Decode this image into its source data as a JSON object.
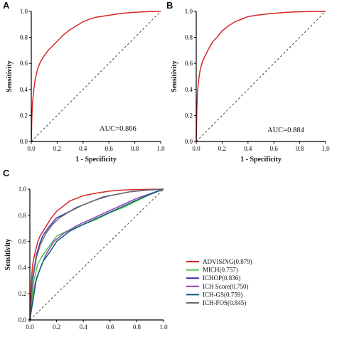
{
  "chart_data": [
    {
      "panel": "A",
      "type": "line",
      "xlabel": "1 - Specificity",
      "ylabel": "Sensitivity",
      "xlim": [
        0,
        1
      ],
      "ylim": [
        0,
        1
      ],
      "xticks": [
        "0.0",
        "0.2",
        "0.4",
        "0.6",
        "0.8",
        "1.0"
      ],
      "yticks": [
        "0.0",
        "0.2",
        "0.4",
        "0.6",
        "0.8",
        "1.0"
      ],
      "annotation": "AUC=0.866",
      "reference_line": "dashed",
      "series": [
        {
          "color": "#d62728",
          "x": [
            0,
            0.005,
            0.01,
            0.02,
            0.03,
            0.05,
            0.07,
            0.1,
            0.13,
            0.16,
            0.2,
            0.25,
            0.3,
            0.35,
            0.4,
            0.45,
            0.5,
            0.6,
            0.7,
            0.8,
            0.9,
            1.0
          ],
          "y": [
            0,
            0.2,
            0.3,
            0.4,
            0.48,
            0.56,
            0.61,
            0.66,
            0.7,
            0.73,
            0.77,
            0.82,
            0.86,
            0.89,
            0.92,
            0.94,
            0.955,
            0.97,
            0.985,
            0.993,
            0.998,
            1.0
          ]
        }
      ]
    },
    {
      "panel": "B",
      "type": "line",
      "xlabel": "1 - Specificity",
      "ylabel": "Sensitivity",
      "xlim": [
        0,
        1
      ],
      "ylim": [
        0,
        1
      ],
      "xticks": [
        "0.0",
        "0.2",
        "0.4",
        "0.6",
        "0.8",
        "1.0"
      ],
      "yticks": [
        "0.0",
        "0.2",
        "0.4",
        "0.6",
        "0.8",
        "1.0"
      ],
      "annotation": "AUC=0.884",
      "reference_line": "dashed",
      "series": [
        {
          "color": "#d62728",
          "x": [
            0,
            0.005,
            0.01,
            0.02,
            0.03,
            0.05,
            0.07,
            0.1,
            0.13,
            0.16,
            0.2,
            0.25,
            0.3,
            0.35,
            0.4,
            0.5,
            0.6,
            0.7,
            0.8,
            0.9,
            1.0
          ],
          "y": [
            0,
            0.25,
            0.38,
            0.48,
            0.55,
            0.62,
            0.66,
            0.72,
            0.77,
            0.8,
            0.85,
            0.89,
            0.92,
            0.94,
            0.96,
            0.975,
            0.985,
            0.993,
            0.997,
            0.999,
            1.0
          ]
        }
      ]
    },
    {
      "panel": "C",
      "type": "line",
      "xlabel": "",
      "ylabel": "Sensitivity",
      "xlim": [
        0,
        1
      ],
      "ylim": [
        0,
        1
      ],
      "xticks": [
        "0.0",
        "0.2",
        "0.4",
        "0.6",
        "0.8",
        "1.0"
      ],
      "yticks": [
        "0.0",
        "0.2",
        "0.4",
        "0.6",
        "0.8",
        "1.0"
      ],
      "reference_line": "dashed",
      "legend_position": "bottom-right-outside",
      "series": [
        {
          "name": "ADVISING(0.879)",
          "color": "#d62728",
          "x": [
            0,
            0.01,
            0.02,
            0.04,
            0.06,
            0.08,
            0.1,
            0.13,
            0.16,
            0.2,
            0.25,
            0.3,
            0.35,
            0.4,
            0.5,
            0.6,
            0.7,
            0.8,
            0.9,
            1.0
          ],
          "y": [
            0,
            0.28,
            0.42,
            0.52,
            0.6,
            0.65,
            0.68,
            0.73,
            0.78,
            0.83,
            0.87,
            0.91,
            0.93,
            0.95,
            0.97,
            0.985,
            0.993,
            0.997,
            0.999,
            1.0
          ]
        },
        {
          "name": "MICH(0.757)",
          "color": "#4dc94d",
          "x": [
            0,
            0.03,
            0.06,
            0.1,
            0.15,
            0.2,
            0.3,
            0.4,
            0.5,
            0.6,
            0.7,
            0.8,
            0.9,
            1.0
          ],
          "y": [
            0,
            0.3,
            0.43,
            0.5,
            0.57,
            0.64,
            0.69,
            0.73,
            0.77,
            0.82,
            0.86,
            0.91,
            0.96,
            1.0
          ]
        },
        {
          "name": "ICHOP(0.836)",
          "color": "#3030b8",
          "x": [
            0,
            0.02,
            0.05,
            0.08,
            0.1,
            0.15,
            0.2,
            0.28,
            0.35,
            0.45,
            0.55,
            0.65,
            0.75,
            0.85,
            1.0
          ],
          "y": [
            0,
            0.32,
            0.5,
            0.6,
            0.65,
            0.72,
            0.78,
            0.82,
            0.86,
            0.9,
            0.94,
            0.96,
            0.98,
            0.99,
            1.0
          ]
        },
        {
          "name": "ICH Score(0.750)",
          "color": "#9a3fc0",
          "x": [
            0,
            0.04,
            0.08,
            0.12,
            0.18,
            0.25,
            0.35,
            0.5,
            0.65,
            0.8,
            1.0
          ],
          "y": [
            0,
            0.28,
            0.4,
            0.5,
            0.6,
            0.66,
            0.72,
            0.79,
            0.86,
            0.93,
            1.0
          ]
        },
        {
          "name": "ICH-GS(0.759)",
          "color": "#0e5e73",
          "x": [
            0,
            0.05,
            0.1,
            0.15,
            0.2,
            0.3,
            0.42,
            0.55,
            0.7,
            0.85,
            1.0
          ],
          "y": [
            0,
            0.32,
            0.45,
            0.52,
            0.6,
            0.68,
            0.74,
            0.8,
            0.87,
            0.94,
            1.0
          ]
        },
        {
          "name": "ICH-FOS(0.845)",
          "color": "#6a6a6a",
          "x": [
            0,
            0.02,
            0.05,
            0.08,
            0.12,
            0.17,
            0.22,
            0.3,
            0.4,
            0.5,
            0.6,
            0.75,
            0.9,
            1.0
          ],
          "y": [
            0,
            0.3,
            0.48,
            0.58,
            0.66,
            0.73,
            0.78,
            0.83,
            0.88,
            0.92,
            0.95,
            0.98,
            0.995,
            1.0
          ]
        }
      ]
    }
  ]
}
